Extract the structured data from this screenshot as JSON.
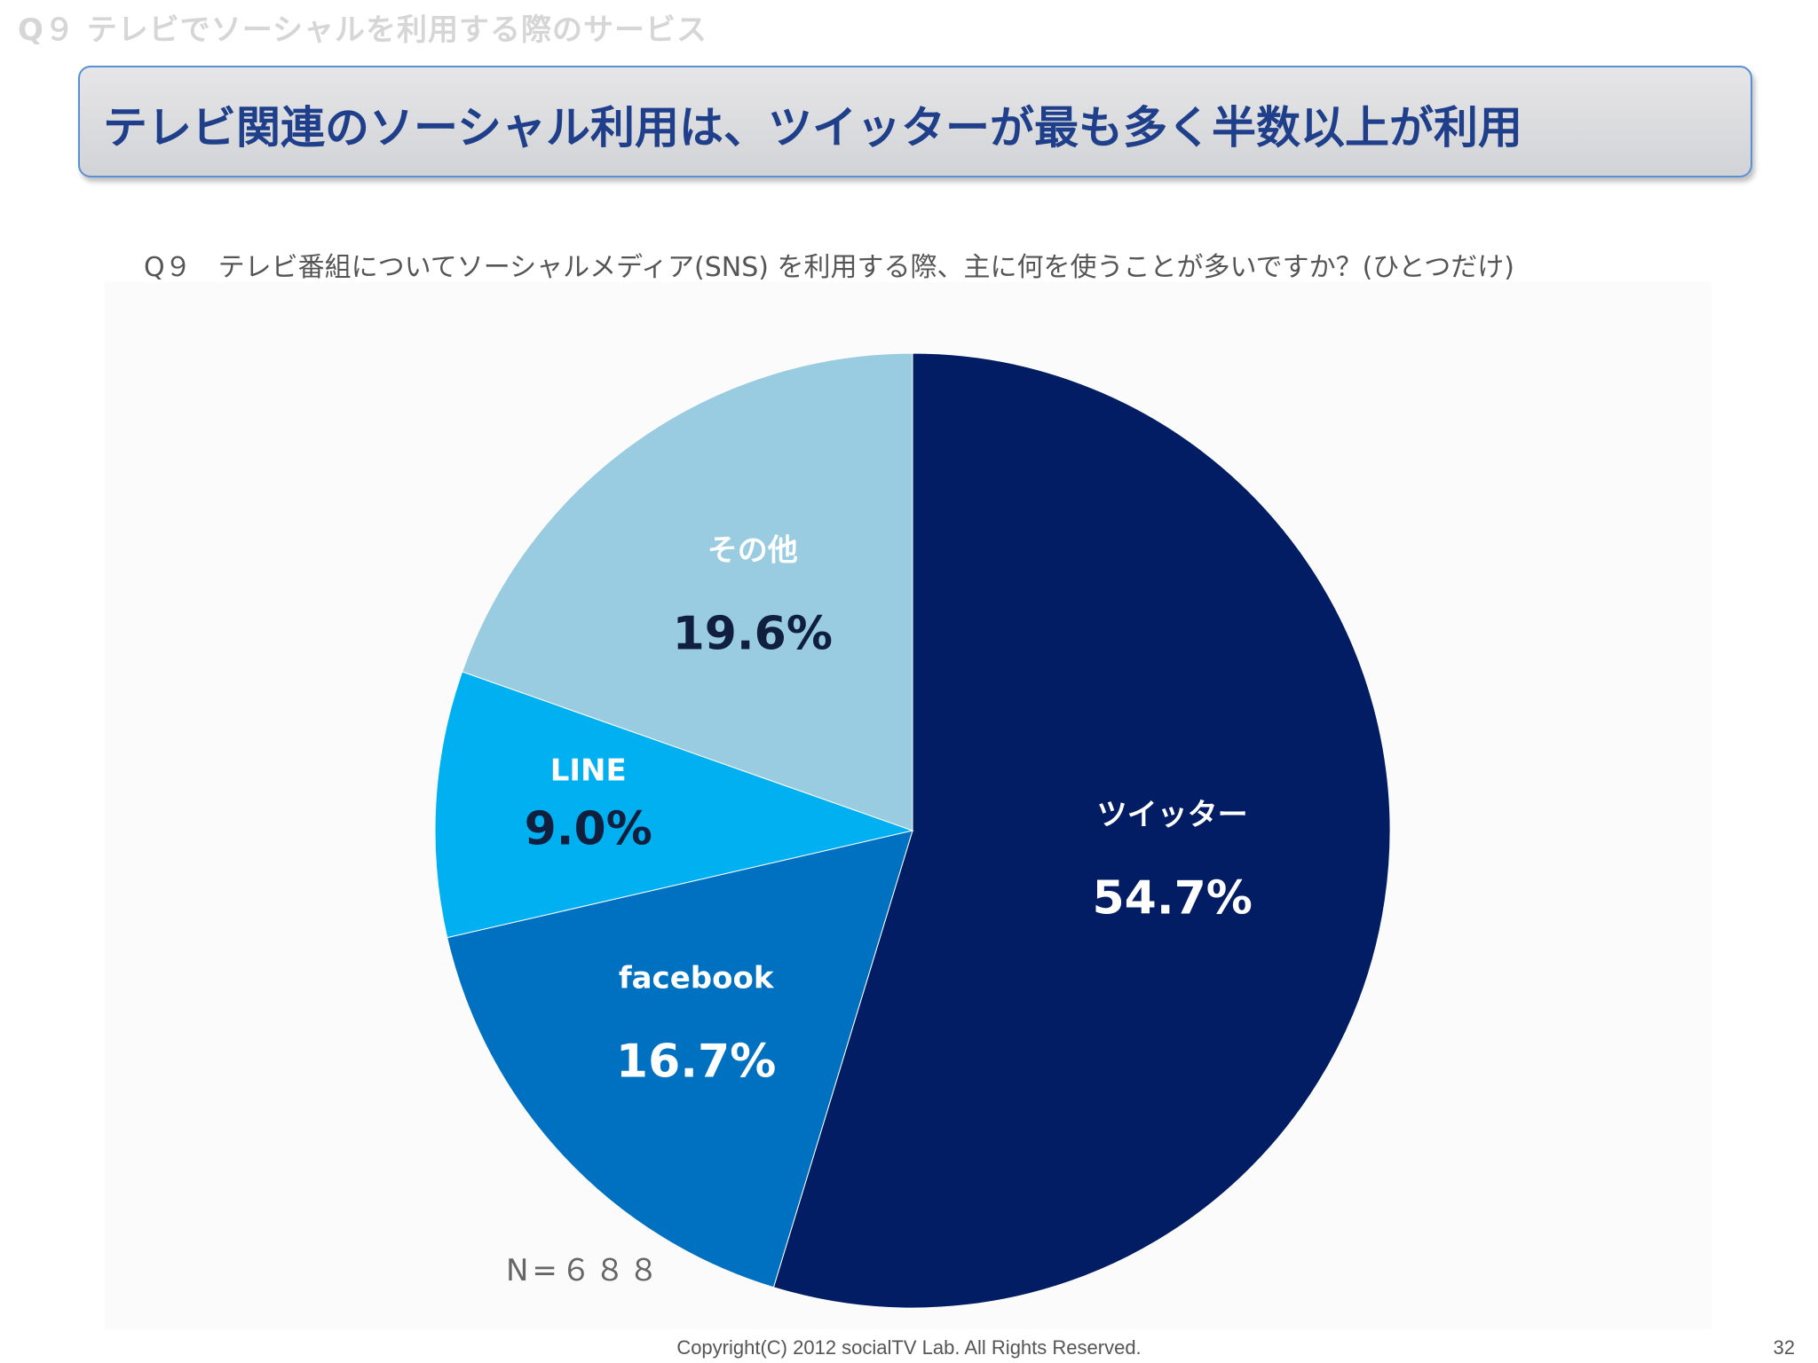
{
  "header": {
    "section_label": "Q９ テレビでソーシャルを利用する際のサービス"
  },
  "title": {
    "text": "テレビ関連のソーシャル利用は、ツイッターが最も多く半数以上が利用"
  },
  "question": {
    "text": "Q９　テレビ番組についてソーシャルメディア(SNS) を利用する際、主に何を使うことが多いですか？(ひとつだけ)"
  },
  "chart_data": {
    "type": "pie",
    "slices": [
      {
        "label": "ツイッター",
        "value": 54.7,
        "value_label": "54.7%",
        "color": "#021d63",
        "label_color": "#ffffff",
        "value_color": "#ffffff"
      },
      {
        "label": "facebook",
        "value": 16.7,
        "value_label": "16.7%",
        "color": "#0070c0",
        "label_color": "#ffffff",
        "value_color": "#ffffff"
      },
      {
        "label": "LINE",
        "value": 9.0,
        "value_label": "9.0%",
        "color": "#00b0f0",
        "label_color": "#ffffff",
        "value_color": "#0f1f3d"
      },
      {
        "label": "その他",
        "value": 19.6,
        "value_label": "19.6%",
        "color": "#99cce0",
        "label_color": "#ffffff",
        "value_color": "#0f1f3d"
      }
    ],
    "start_angle": "12 o'clock",
    "direction": "clockwise"
  },
  "sample": {
    "n_label": "N=６８８"
  },
  "footer": {
    "copyright": "Copyright(C) 2012 socialTV Lab. All Rights Reserved.",
    "page_number": "32"
  }
}
